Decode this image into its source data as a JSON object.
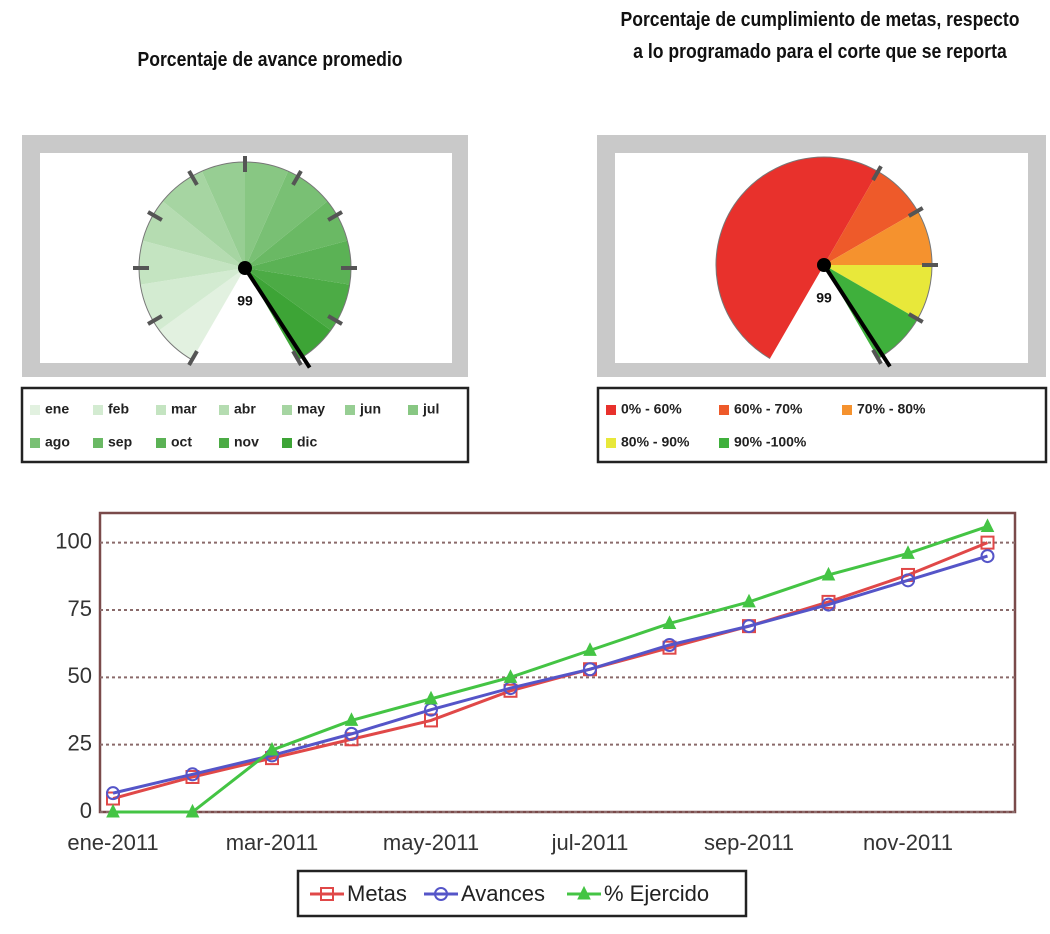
{
  "chart_data": [
    {
      "type": "gauge",
      "title": "Porcentaje de avance promedio",
      "range": [
        0,
        100
      ],
      "ticks": [
        0,
        10,
        20,
        30,
        40,
        50,
        60,
        70,
        80,
        90,
        100
      ],
      "value": 99,
      "series": [
        {
          "name": "ene",
          "color": "#e2f1e0",
          "value": 8
        },
        {
          "name": "feb",
          "color": "#d3ebd1",
          "value": 17
        },
        {
          "name": "mar",
          "color": "#c4e4c1",
          "value": 25
        },
        {
          "name": "abr",
          "color": "#b5dcb1",
          "value": 33
        },
        {
          "name": "may",
          "color": "#a6d5a2",
          "value": 42
        },
        {
          "name": "jun",
          "color": "#97ce93",
          "value": 50
        },
        {
          "name": "jul",
          "color": "#88c783",
          "value": 58
        },
        {
          "name": "ago",
          "color": "#79c074",
          "value": 67
        },
        {
          "name": "sep",
          "color": "#6ab964",
          "value": 75
        },
        {
          "name": "oct",
          "color": "#5bb255",
          "value": 83
        },
        {
          "name": "nov",
          "color": "#4cab45",
          "value": 92
        },
        {
          "name": "dic",
          "color": "#3da436",
          "value": 100
        }
      ]
    },
    {
      "type": "gauge",
      "title": "Porcentaje de cumplimiento de metas, respecto a lo programado para el corte que se reporta",
      "range": [
        0,
        100
      ],
      "ticks": [
        60,
        70,
        80,
        90,
        100
      ],
      "value": 99,
      "series": [
        {
          "name": "0% - 60%",
          "color": "#e8312c",
          "value": 60
        },
        {
          "name": "60% - 70%",
          "color": "#ee5a2a",
          "value": 70
        },
        {
          "name": "70% - 80%",
          "color": "#f5922e",
          "value": 80
        },
        {
          "name": "80% - 90%",
          "color": "#e8e83a",
          "value": 90
        },
        {
          "name": "90% -100%",
          "color": "#3fb03c",
          "value": 100
        }
      ]
    },
    {
      "type": "line",
      "categories": [
        "ene-2011",
        null,
        "mar-2011",
        null,
        "may-2011",
        null,
        "jul-2011",
        null,
        "sep-2011",
        null,
        "nov-2011",
        null
      ],
      "ylim": [
        0,
        111
      ],
      "yticks": [
        0,
        25,
        50,
        75,
        100
      ],
      "grid": true,
      "series": [
        {
          "name": "Metas",
          "color": "#e04848",
          "marker": "square",
          "values": [
            5,
            13,
            20,
            27,
            34,
            45,
            53,
            61,
            69,
            78,
            88,
            100
          ]
        },
        {
          "name": "Avances",
          "color": "#5555c8",
          "marker": "circle",
          "values": [
            7,
            14,
            21,
            29,
            38,
            46,
            53,
            62,
            69,
            77,
            86,
            95
          ]
        },
        {
          "name": "% Ejercido",
          "color": "#44c444",
          "marker": "triangle",
          "values": [
            0,
            0,
            23,
            34,
            42,
            50,
            60,
            70,
            78,
            88,
            96,
            106
          ]
        }
      ]
    }
  ]
}
